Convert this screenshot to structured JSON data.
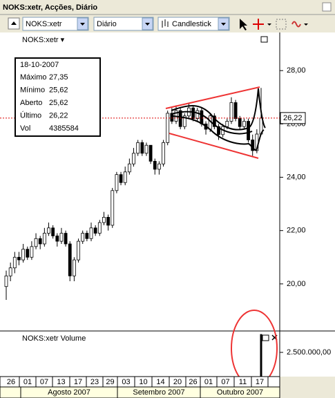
{
  "window": {
    "title": "NOKS:xetr, Acções, Diário"
  },
  "toolbar": {
    "symbol": "NOKS:xetr",
    "period": "Diário",
    "style": "Candlestick"
  },
  "info": {
    "date": "18-10-2007",
    "rows": [
      {
        "label": "Máximo",
        "value": "27,35"
      },
      {
        "label": "Mínimo",
        "value": "25,62"
      },
      {
        "label": "Aberto",
        "value": "25,62"
      },
      {
        "label": "Último",
        "value": "26,22"
      },
      {
        "label": "Vol",
        "value": "4385584"
      }
    ]
  },
  "chart_data": {
    "type": "candlestick",
    "title": "NOKS:xetr ▾",
    "candles": [
      [
        19.9,
        20.5,
        19.4,
        20.3
      ],
      [
        20.3,
        20.8,
        20.1,
        20.6
      ],
      [
        20.6,
        21.2,
        20.4,
        21.0
      ],
      [
        21.0,
        21.2,
        20.7,
        20.9
      ],
      [
        20.9,
        21.5,
        20.8,
        21.3
      ],
      [
        21.3,
        21.4,
        20.9,
        21.0
      ],
      [
        21.0,
        21.6,
        20.9,
        21.4
      ],
      [
        21.4,
        21.9,
        21.3,
        21.7
      ],
      [
        21.7,
        21.8,
        21.3,
        21.5
      ],
      [
        21.5,
        22.1,
        21.4,
        21.9
      ],
      [
        21.9,
        22.3,
        21.8,
        22.1
      ],
      [
        22.1,
        22.2,
        21.7,
        21.8
      ],
      [
        21.8,
        21.9,
        21.4,
        21.6
      ],
      [
        21.6,
        22.1,
        21.5,
        21.9
      ],
      [
        21.9,
        22.0,
        21.4,
        21.5
      ],
      [
        21.5,
        21.6,
        20.1,
        20.3
      ],
      [
        20.3,
        21.0,
        20.1,
        20.9
      ],
      [
        20.9,
        21.7,
        20.8,
        21.6
      ],
      [
        21.6,
        22.0,
        21.5,
        21.9
      ],
      [
        21.9,
        22.0,
        21.6,
        21.7
      ],
      [
        21.7,
        22.3,
        21.6,
        22.1
      ],
      [
        22.1,
        22.2,
        21.8,
        21.9
      ],
      [
        21.9,
        22.4,
        21.8,
        22.3
      ],
      [
        22.3,
        22.7,
        22.2,
        22.5
      ],
      [
        22.5,
        22.6,
        22.0,
        22.2
      ],
      [
        22.2,
        23.6,
        22.1,
        23.5
      ],
      [
        23.5,
        24.2,
        23.4,
        24.1
      ],
      [
        24.1,
        24.2,
        23.7,
        23.8
      ],
      [
        23.8,
        24.4,
        23.7,
        24.2
      ],
      [
        24.2,
        24.7,
        24.1,
        24.5
      ],
      [
        24.5,
        25.1,
        24.4,
        24.9
      ],
      [
        24.9,
        25.4,
        24.8,
        25.3
      ],
      [
        25.3,
        25.4,
        24.8,
        24.9
      ],
      [
        24.9,
        25.3,
        24.8,
        25.2
      ],
      [
        25.2,
        25.2,
        24.5,
        24.6
      ],
      [
        24.6,
        24.7,
        24.1,
        24.3
      ],
      [
        24.3,
        24.6,
        24.1,
        24.5
      ],
      [
        24.5,
        25.4,
        24.4,
        25.3
      ],
      [
        25.3,
        26.5,
        25.2,
        26.4
      ],
      [
        26.4,
        26.6,
        26.0,
        26.1
      ],
      [
        26.1,
        26.7,
        26.0,
        26.5
      ],
      [
        26.5,
        26.6,
        25.8,
        25.9
      ],
      [
        25.9,
        26.4,
        25.8,
        26.3
      ],
      [
        26.3,
        26.8,
        26.2,
        26.6
      ],
      [
        26.6,
        26.7,
        26.1,
        26.2
      ],
      [
        26.2,
        26.6,
        26.1,
        26.5
      ],
      [
        26.5,
        26.6,
        25.9,
        26.0
      ],
      [
        26.0,
        26.1,
        25.6,
        25.8
      ],
      [
        25.8,
        26.4,
        25.7,
        26.3
      ],
      [
        26.3,
        26.4,
        25.8,
        25.9
      ],
      [
        25.9,
        26.0,
        25.4,
        25.6
      ],
      [
        25.6,
        26.0,
        25.5,
        25.9
      ],
      [
        25.9,
        26.2,
        25.8,
        26.1
      ],
      [
        26.1,
        27.0,
        26.0,
        26.8
      ],
      [
        26.8,
        26.9,
        26.1,
        26.2
      ],
      [
        26.2,
        26.3,
        25.8,
        25.9
      ],
      [
        25.9,
        26.2,
        25.8,
        26.1
      ],
      [
        26.1,
        26.2,
        25.3,
        25.4
      ],
      [
        25.4,
        25.6,
        24.8,
        25.0
      ],
      [
        25.0,
        25.8,
        24.9,
        25.62
      ],
      [
        25.62,
        27.35,
        25.62,
        26.22
      ]
    ],
    "ylim": [
      18.26,
      29.43
    ],
    "yticks": [
      {
        "value": 20,
        "label": "20,00"
      },
      {
        "value": 22,
        "label": "22,00"
      },
      {
        "value": 24,
        "label": "24,00"
      },
      {
        "value": 26,
        "label": "26,00"
      },
      {
        "value": 28,
        "label": "28,00"
      }
    ],
    "last": {
      "value": 26.22,
      "label": "26,22"
    },
    "volume": {
      "title": "NOKS:xetr Volume",
      "value": 4385584,
      "ylim": [
        0,
        4640000
      ],
      "yticks": [
        {
          "value": 2500000,
          "label": "2.500.000,00"
        }
      ]
    },
    "days": [
      "26",
      "01",
      "07",
      "13",
      "17",
      "23",
      "29",
      "03",
      "10",
      "14",
      "20",
      "26",
      "01",
      "07",
      "11",
      "17"
    ],
    "months": [
      "Agosto 2007",
      "Setembro 2007",
      "Outubro 2007"
    ]
  }
}
